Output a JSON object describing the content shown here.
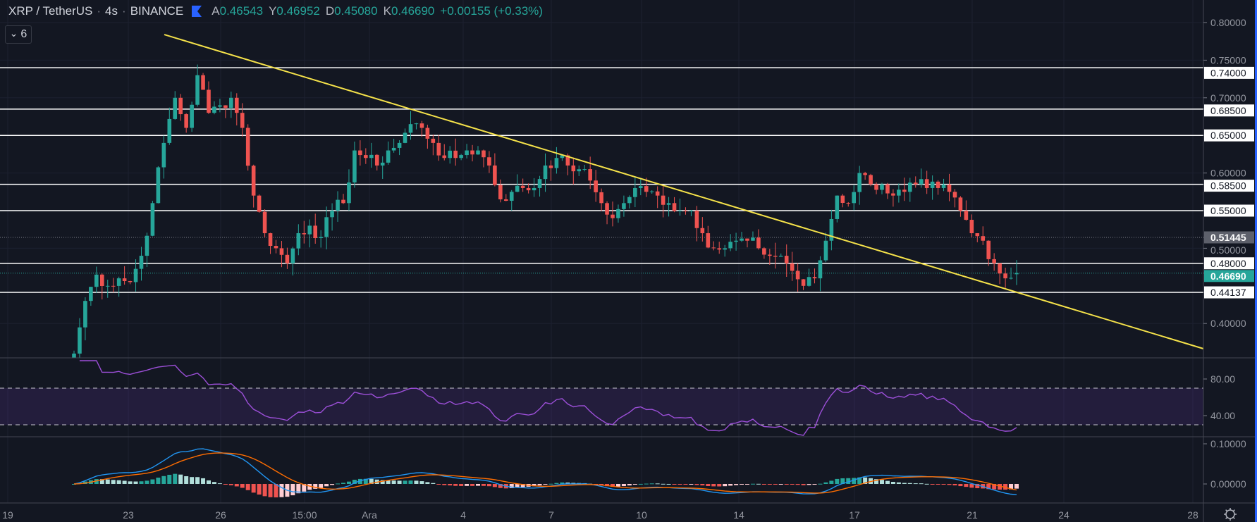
{
  "header": {
    "symbol": "XRP / TetherUS",
    "sep1": "·",
    "interval": "4s",
    "sep2": "·",
    "exchange": "BINANCE",
    "ohlc": [
      {
        "label": "A",
        "value": "0.46543"
      },
      {
        "label": "Y",
        "value": "0.46952"
      },
      {
        "label": "D",
        "value": "0.45080"
      },
      {
        "label": "K",
        "value": "0.46690"
      }
    ],
    "change": "+0.00155 (+0.33%)"
  },
  "collapse_button": {
    "icon": "chevron-down-icon",
    "glyph": "⌄",
    "count": "6"
  },
  "colors": {
    "background": "#131722",
    "up": "#26a69a",
    "down": "#ef5350",
    "trendline": "#f5e24a",
    "rsi": "#9c4fd8",
    "macd": "#2196f3",
    "signal": "#ff6d00"
  },
  "chart_data": {
    "type": "candlestick",
    "title": "XRP / TetherUS · 4s · BINANCE",
    "closes": [
      0.36,
      0.43,
      0.465,
      0.45,
      0.46,
      0.455,
      0.49,
      0.56,
      0.64,
      0.7,
      0.66,
      0.73,
      0.68,
      0.69,
      0.7,
      0.66,
      0.57,
      0.52,
      0.5,
      0.48,
      0.52,
      0.53,
      0.515,
      0.55,
      0.56,
      0.63,
      0.62,
      0.61,
      0.63,
      0.64,
      0.665,
      0.66,
      0.64,
      0.62,
      0.62,
      0.63,
      0.63,
      0.61,
      0.565,
      0.575,
      0.58,
      0.58,
      0.61,
      0.62,
      0.61,
      0.605,
      0.59,
      0.56,
      0.54,
      0.56,
      0.58,
      0.575,
      0.57,
      0.56,
      0.55,
      0.55,
      0.52,
      0.5,
      0.5,
      0.51,
      0.51,
      0.5,
      0.49,
      0.49,
      0.47,
      0.45,
      0.46,
      0.51,
      0.57,
      0.56,
      0.6,
      0.585,
      0.585,
      0.57,
      0.575,
      0.585,
      0.58,
      0.58,
      0.575,
      0.55,
      0.52,
      0.51,
      0.48,
      0.46,
      0.4669
    ],
    "price_axis": {
      "range": [
        0.35,
        0.81
      ],
      "ticks": [
        "0.80000",
        "0.75000",
        "0.70000",
        "0.60000",
        "0.50000",
        "0.40000"
      ],
      "tick_values": [
        0.8,
        0.75,
        0.7,
        0.6,
        0.5,
        0.4
      ]
    },
    "horizontal_levels": [
      {
        "value": 0.74,
        "label": "0.74000"
      },
      {
        "value": 0.685,
        "label": "0.68500"
      },
      {
        "value": 0.65,
        "label": "0.65000"
      },
      {
        "value": 0.585,
        "label": "0.58500"
      },
      {
        "value": 0.55,
        "label": "0.55000"
      },
      {
        "value": 0.48,
        "label": "0.48000"
      },
      {
        "value": 0.44137,
        "label": "0.44137"
      }
    ],
    "marker_prev": {
      "value": 0.51445,
      "label": "0.51445"
    },
    "marker_last": {
      "value": 0.4669,
      "label": "0.46690"
    },
    "trendline": {
      "from_price": 0.784,
      "to_price": 0.3
    },
    "time_labels": [
      "19",
      "23",
      "26",
      "15:00",
      "Ara",
      "4",
      "7",
      "10",
      "14",
      "17",
      "21",
      "24",
      "28"
    ],
    "rsi": {
      "period": 14,
      "upper": 70,
      "lower": 30,
      "ticks": [
        "80.00",
        "40.00"
      ],
      "tick_values": [
        80,
        40
      ]
    },
    "macd": {
      "fast": 12,
      "slow": 26,
      "signal": 9,
      "ticks": [
        "0.10000",
        "0.00000"
      ],
      "tick_values": [
        0.1,
        0.0
      ]
    }
  },
  "settings_icon": "gear-icon"
}
